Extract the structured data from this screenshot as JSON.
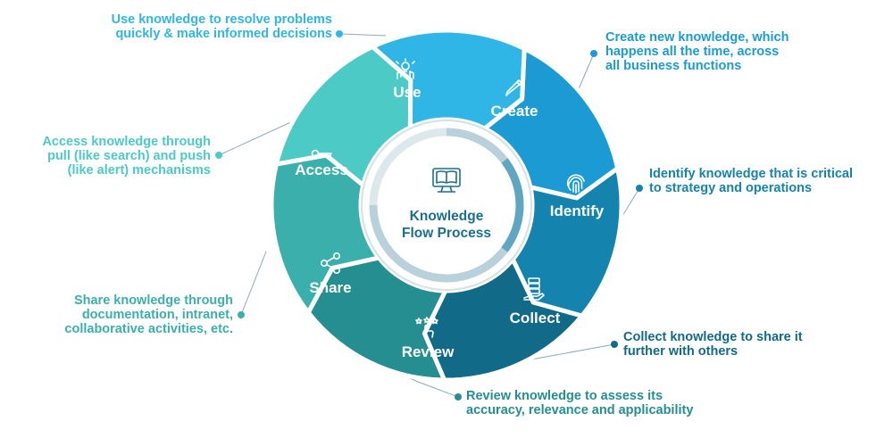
{
  "diagram": {
    "title": "Knowledge Flow Process",
    "center_title_lines": [
      "Knowledge",
      "Flow Process"
    ],
    "stages": [
      {
        "label": "Use",
        "icon": "hand-bulb-icon",
        "color": "#2FB6E6",
        "description": "Use knowledge to resolve problems\nquickly & make informed decisions"
      },
      {
        "label": "Create",
        "icon": "pencil-icon",
        "color": "#1B9AD4",
        "description": "Create new knowledge, which\nhappens all the time, across\nall business functions"
      },
      {
        "label": "Identify",
        "icon": "fingerprint-icon",
        "color": "#1483AD",
        "description": "Identify knowledge that is critical\nto strategy and operations"
      },
      {
        "label": "Collect",
        "icon": "server-hand-icon",
        "color": "#116A87",
        "description": "Collect knowledge to share it\nfurther with others"
      },
      {
        "label": "Review",
        "icon": "stars-cursor-icon",
        "color": "#258E90",
        "description": "Review knowledge to assess its\naccuracy, relevance and applicability"
      },
      {
        "label": "Share",
        "icon": "share-icon",
        "color": "#3BAFAB",
        "description": "Share knowledge through\ndocumentation, intranet,\ncollaborative activities, etc."
      },
      {
        "label": "Access",
        "icon": "key-icon",
        "color": "#4CCBC6",
        "description": "Access knowledge through\npull (like search) and push\n(like alert) mechanisms"
      }
    ],
    "colors": {
      "center_text": "#1B6F8E",
      "ring_light": "#D4E1E6",
      "ring_dark": "#0E6C8B",
      "connector": "#8AAAB8"
    }
  }
}
